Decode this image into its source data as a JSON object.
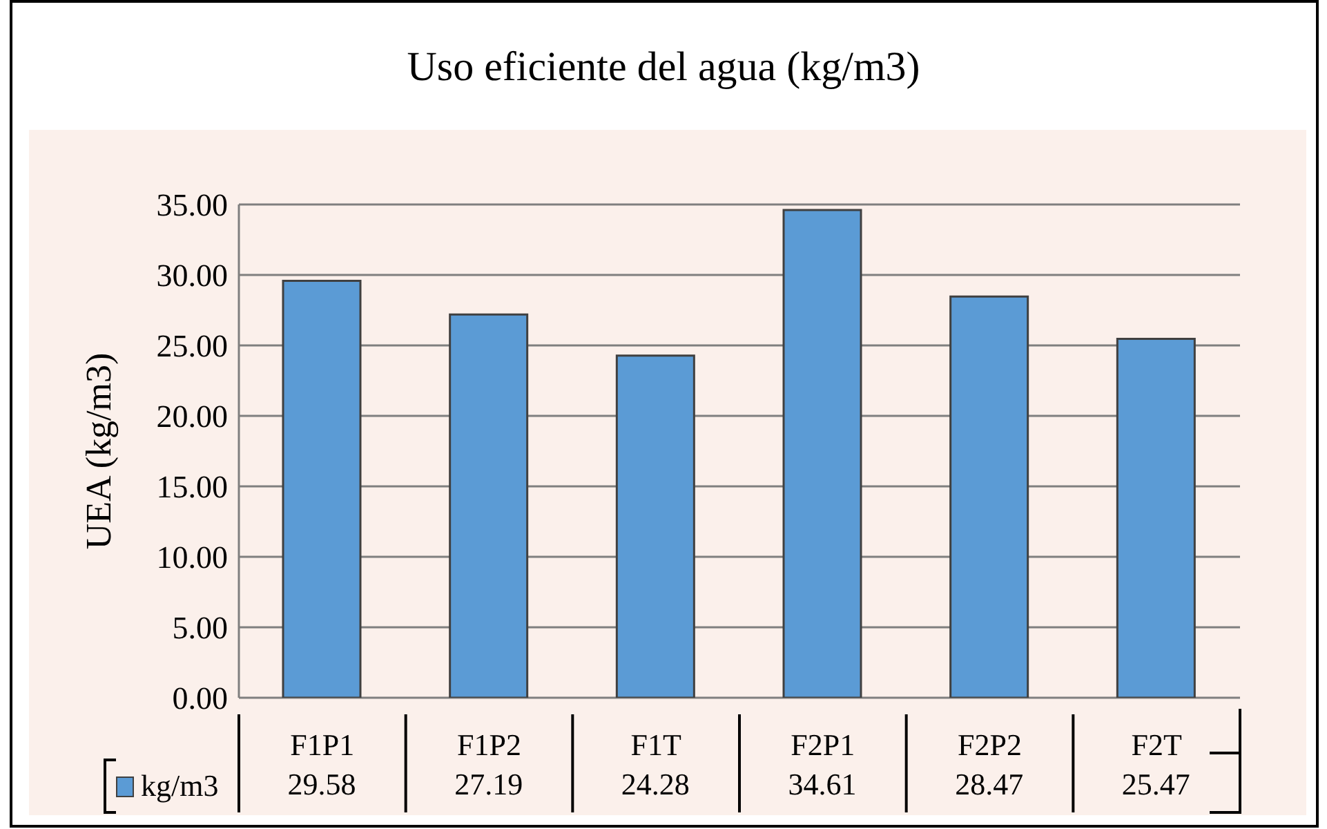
{
  "chart_data": {
    "type": "bar",
    "title": "Uso eficiente del agua (kg/m3)",
    "ylabel": "UEA (kg/m3)",
    "categories": [
      "F1P1",
      "F1P2",
      "F1T",
      "F2P1",
      "F2P2",
      "F2T"
    ],
    "series": [
      {
        "name": "kg/m3",
        "color": "#5b9bd5",
        "values": [
          29.58,
          27.19,
          24.28,
          34.61,
          28.47,
          25.47
        ]
      }
    ],
    "ylim": [
      0,
      35
    ],
    "yticks": [
      {
        "value": 0,
        "label": "0.00"
      },
      {
        "value": 5,
        "label": "5.00"
      },
      {
        "value": 10,
        "label": "10.00"
      },
      {
        "value": 15,
        "label": "15.00"
      },
      {
        "value": 20,
        "label": "20.00"
      },
      {
        "value": 25,
        "label": "25.00"
      },
      {
        "value": 30,
        "label": "30.00"
      },
      {
        "value": 35,
        "label": "35.00"
      }
    ],
    "grid": "y",
    "legend": "bottom left",
    "data_labels": true
  }
}
